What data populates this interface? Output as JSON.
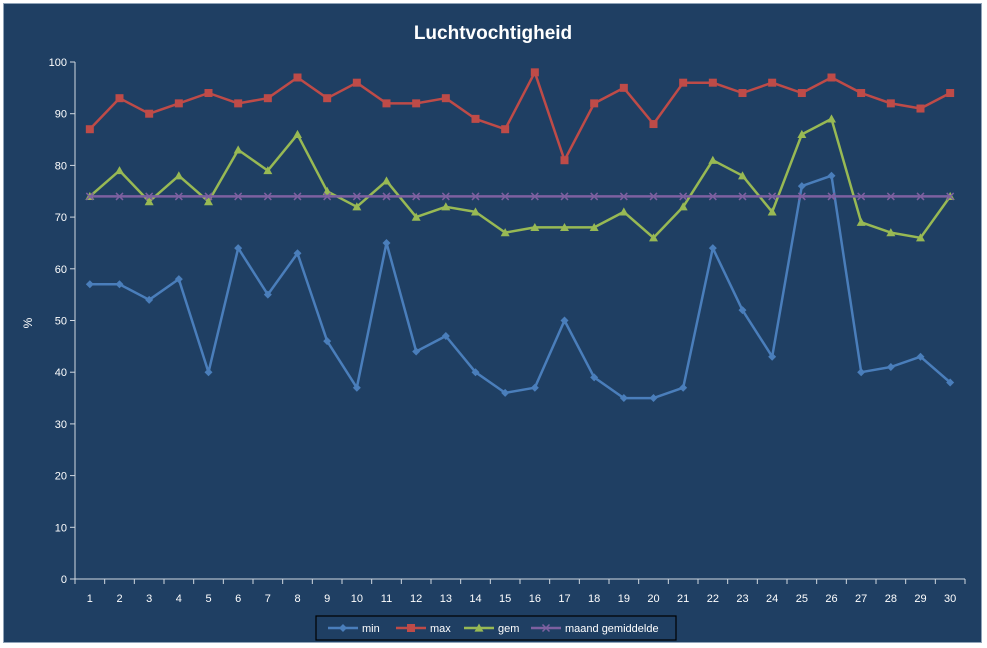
{
  "chart_data": {
    "type": "line",
    "title": "Luchtvochtigheid",
    "xlabel": "",
    "ylabel": "%",
    "ylim": [
      0,
      100
    ],
    "yticks": [
      0,
      10,
      20,
      30,
      40,
      50,
      60,
      70,
      80,
      90,
      100
    ],
    "categories": [
      "1",
      "2",
      "3",
      "4",
      "5",
      "6",
      "7",
      "8",
      "9",
      "10",
      "11",
      "12",
      "13",
      "14",
      "15",
      "16",
      "17",
      "18",
      "19",
      "20",
      "21",
      "22",
      "23",
      "24",
      "25",
      "26",
      "27",
      "28",
      "29",
      "30"
    ],
    "grid": false,
    "legend_position": "bottom",
    "series": [
      {
        "name": "min",
        "color": "#4a7ebb",
        "marker": "diamond",
        "values": [
          57,
          57,
          54,
          58,
          40,
          64,
          55,
          63,
          46,
          37,
          65,
          44,
          47,
          40,
          36,
          37,
          50,
          39,
          35,
          35,
          37,
          64,
          52,
          43,
          76,
          78,
          40,
          41,
          43,
          38
        ]
      },
      {
        "name": "max",
        "color": "#be4b48",
        "marker": "square",
        "values": [
          87,
          93,
          90,
          92,
          94,
          92,
          93,
          97,
          93,
          96,
          92,
          92,
          93,
          89,
          87,
          98,
          81,
          92,
          95,
          88,
          96,
          96,
          94,
          96,
          94,
          97,
          94,
          92,
          91,
          94
        ]
      },
      {
        "name": "gem",
        "color": "#98b954",
        "marker": "triangle",
        "values": [
          74,
          79,
          73,
          78,
          73,
          83,
          79,
          86,
          75,
          72,
          77,
          70,
          72,
          71,
          67,
          68,
          68,
          68,
          71,
          66,
          72,
          81,
          78,
          71,
          86,
          89,
          69,
          67,
          66,
          74
        ]
      },
      {
        "name": "maand gemiddelde",
        "color": "#7d60a0",
        "marker": "x",
        "values": [
          74,
          74,
          74,
          74,
          74,
          74,
          74,
          74,
          74,
          74,
          74,
          74,
          74,
          74,
          74,
          74,
          74,
          74,
          74,
          74,
          74,
          74,
          74,
          74,
          74,
          74,
          74,
          74,
          74,
          74
        ]
      }
    ]
  }
}
